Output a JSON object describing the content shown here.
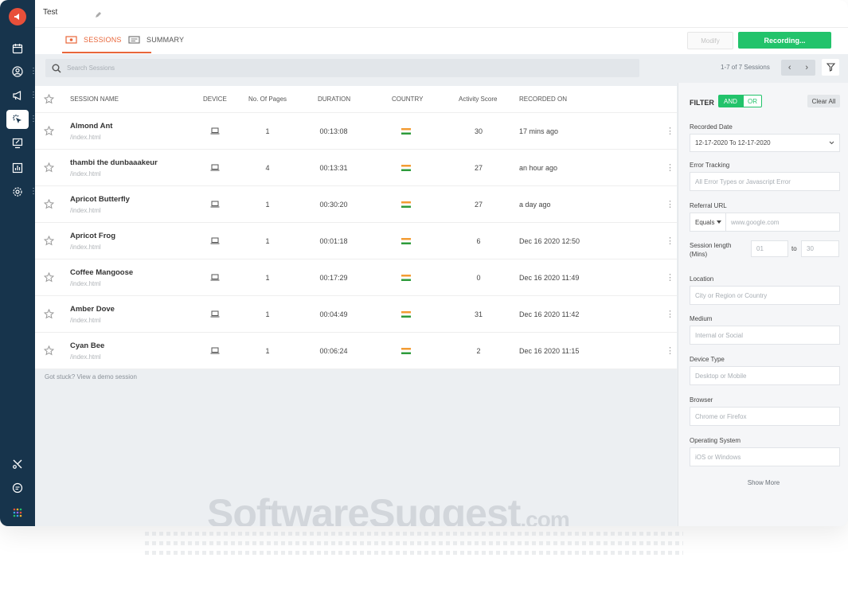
{
  "header": {
    "title": "Test"
  },
  "tabs": [
    {
      "label": "SESSIONS",
      "active": true
    },
    {
      "label": "SUMMARY",
      "active": false
    }
  ],
  "actions": {
    "modify_label": "Modify",
    "recording_label": "Recording..."
  },
  "search": {
    "placeholder": "Search Sessions"
  },
  "pagination": {
    "summary": "1-7 of 7 Sessions",
    "prev": "‹",
    "next": "›"
  },
  "table": {
    "headers": {
      "name": "SESSION NAME",
      "device": "DEVICE",
      "pages": "No. Of Pages",
      "duration": "DURATION",
      "country": "COUNTRY",
      "activity": "Activity Score",
      "recorded": "RECORDED ON"
    },
    "rows": [
      {
        "name": "Almond Ant",
        "path": "/index.html",
        "pages": "1",
        "duration": "00:13:08",
        "score": "30",
        "recorded": "17 mins ago"
      },
      {
        "name": "thambi the dunbaaakeur",
        "path": "/index.html",
        "pages": "4",
        "duration": "00:13:31",
        "score": "27",
        "recorded": "an hour ago"
      },
      {
        "name": "Apricot Butterfly",
        "path": "/index.html",
        "pages": "1",
        "duration": "00:30:20",
        "score": "27",
        "recorded": "a day ago"
      },
      {
        "name": "Apricot Frog",
        "path": "/index.html",
        "pages": "1",
        "duration": "00:01:18",
        "score": "6",
        "recorded": "Dec 16 2020 12:50"
      },
      {
        "name": "Coffee Mangoose",
        "path": "/index.html",
        "pages": "1",
        "duration": "00:17:29",
        "score": "0",
        "recorded": "Dec 16 2020 11:49"
      },
      {
        "name": "Amber Dove",
        "path": "/index.html",
        "pages": "1",
        "duration": "00:04:49",
        "score": "31",
        "recorded": "Dec 16 2020 11:42"
      },
      {
        "name": "Cyan Bee",
        "path": "/index.html",
        "pages": "1",
        "duration": "00:06:24",
        "score": "2",
        "recorded": "Dec 16 2020 11:15"
      }
    ]
  },
  "help_text": "Got stuck? View a demo session",
  "filter": {
    "title": "FILTER",
    "and_label": "AND",
    "or_label": "OR",
    "clear_label": "Clear All",
    "recorded_date_label": "Recorded Date",
    "recorded_date_value": "12-17-2020 To 12-17-2020",
    "error_label": "Error Tracking",
    "error_placeholder": "All Error Types or Javascript Error",
    "referral_label": "Referral URL",
    "referral_op": "Equals",
    "referral_placeholder": "www.google.com",
    "session_length_label": "Session length",
    "session_length_unit": "(Mins)",
    "length_from": "01",
    "length_to_label": "to",
    "length_to": "30",
    "location_label": "Location",
    "location_placeholder": "City or Region or Country",
    "medium_label": "Medium",
    "medium_placeholder": "Internal or Social",
    "device_label": "Device Type",
    "device_placeholder": "Desktop or Mobile",
    "browser_label": "Browser",
    "browser_placeholder": "Chrome or Firefox",
    "os_label": "Operating System",
    "os_placeholder": "iOS or Windows",
    "show_more": "Show More"
  },
  "watermark": {
    "brand": "SoftwareSuggest",
    "suffix": ".com"
  },
  "colors": {
    "sidebar": "#17344c",
    "accent": "#e8663a",
    "green": "#22c36b"
  }
}
